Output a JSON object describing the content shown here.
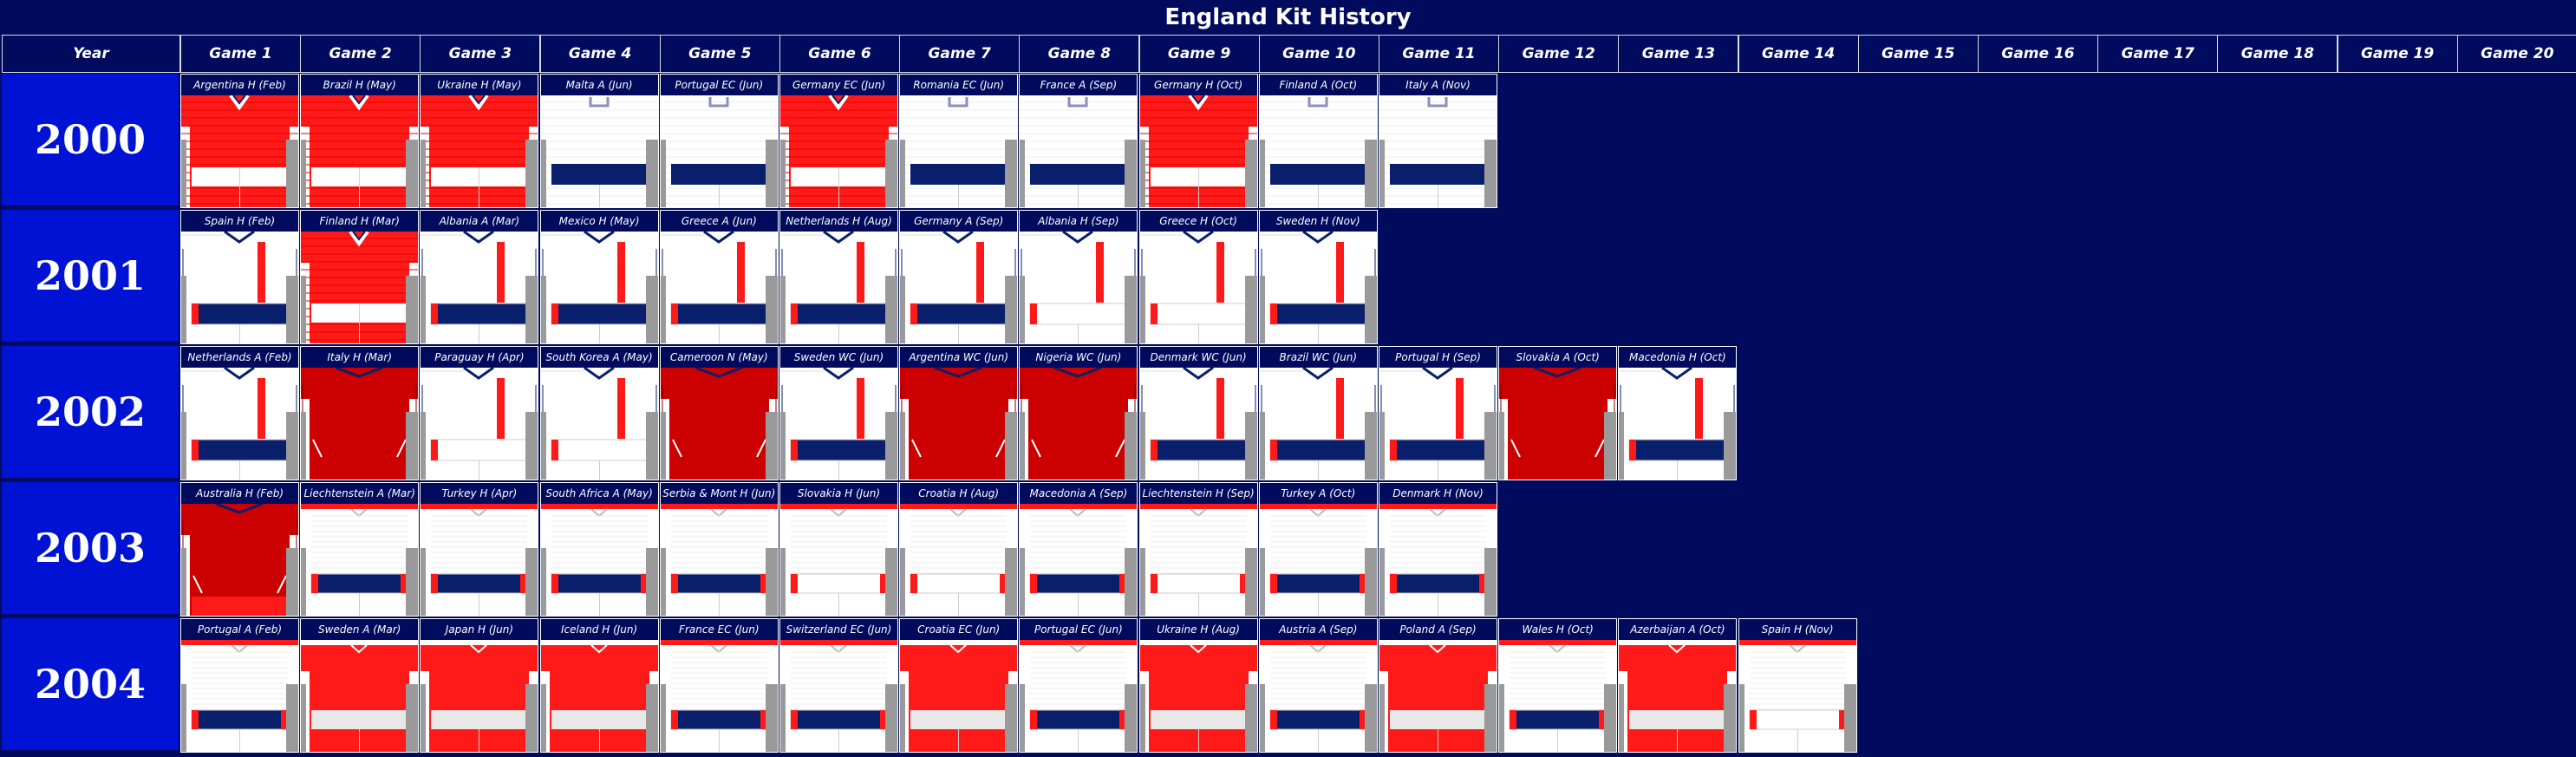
{
  "title": "England Kit History",
  "header": {
    "year_label": "Year",
    "games": [
      "Game 1",
      "Game 2",
      "Game 3",
      "Game 4",
      "Game 5",
      "Game 6",
      "Game 7",
      "Game 8",
      "Game 9",
      "Game 10",
      "Game 11",
      "Game 12",
      "Game 13",
      "Game 14",
      "Game 15",
      "Game 16",
      "Game 17",
      "Game 18",
      "Game 19",
      "Game 20"
    ]
  },
  "colors": {
    "background": "#000b5e",
    "year_cell": "#0012d4",
    "red": "#ff1a1a",
    "dark_red": "#cc0000",
    "navy": "#0a1f6b",
    "grey": "#9a9a9a",
    "white": "#ffffff"
  },
  "years": [
    {
      "year": "2000",
      "games": [
        {
          "label": "Argentina H (Feb)",
          "kit": "red_v"
        },
        {
          "label": "Brazil H (May)",
          "kit": "red_v"
        },
        {
          "label": "Ukraine H (May)",
          "kit": "red_v"
        },
        {
          "label": "Malta A (Jun)",
          "kit": "white_collar"
        },
        {
          "label": "Portugal EC (Jun)",
          "kit": "white_collar"
        },
        {
          "label": "Germany EC (Jun)",
          "kit": "red_v"
        },
        {
          "label": "Romania EC (Jun)",
          "kit": "white_collar"
        },
        {
          "label": "France A (Sep)",
          "kit": "white_collar"
        },
        {
          "label": "Germany H (Oct)",
          "kit": "red_v"
        },
        {
          "label": "Finland A (Oct)",
          "kit": "white_collar"
        },
        {
          "label": "Italy A (Nov)",
          "kit": "white_collar"
        }
      ]
    },
    {
      "year": "2001",
      "games": [
        {
          "label": "Spain H (Feb)",
          "kit": "white_stripe"
        },
        {
          "label": "Finland H (Mar)",
          "kit": "red_v"
        },
        {
          "label": "Albania A (Mar)",
          "kit": "white_stripe"
        },
        {
          "label": "Mexico H (May)",
          "kit": "white_stripe"
        },
        {
          "label": "Greece A (Jun)",
          "kit": "white_stripe"
        },
        {
          "label": "Netherlands H (Aug)",
          "kit": "white_stripe"
        },
        {
          "label": "Germany A (Sep)",
          "kit": "white_stripe"
        },
        {
          "label": "Albania H (Sep)",
          "kit": "white_stripe_ws"
        },
        {
          "label": "Greece H (Oct)",
          "kit": "white_stripe_ws"
        },
        {
          "label": "Sweden H (Nov)",
          "kit": "white_stripe"
        }
      ]
    },
    {
      "year": "2002",
      "games": [
        {
          "label": "Netherlands A (Feb)",
          "kit": "white_stripe"
        },
        {
          "label": "Italy H (Mar)",
          "kit": "dark_red"
        },
        {
          "label": "Paraguay H (Apr)",
          "kit": "white_stripe_ws"
        },
        {
          "label": "South Korea A (May)",
          "kit": "white_stripe_ws"
        },
        {
          "label": "Cameroon N (May)",
          "kit": "dark_red"
        },
        {
          "label": "Sweden WC (Jun)",
          "kit": "white_stripe"
        },
        {
          "label": "Argentina WC (Jun)",
          "kit": "dark_red"
        },
        {
          "label": "Nigeria WC (Jun)",
          "kit": "dark_red"
        },
        {
          "label": "Denmark WC (Jun)",
          "kit": "white_stripe"
        },
        {
          "label": "Brazil WC (Jun)",
          "kit": "white_stripe"
        },
        {
          "label": "Portugal H (Sep)",
          "kit": "white_stripe"
        },
        {
          "label": "Slovakia A (Oct)",
          "kit": "dark_red"
        },
        {
          "label": "Macedonia H (Oct)",
          "kit": "white_stripe"
        }
      ]
    },
    {
      "year": "2003",
      "games": [
        {
          "label": "Australia H (Feb)",
          "kit": "dark_red2"
        },
        {
          "label": "Liechtenstein A (Mar)",
          "kit": "white_plain"
        },
        {
          "label": "Turkey H (Apr)",
          "kit": "white_plain"
        },
        {
          "label": "South Africa A (May)",
          "kit": "white_plain"
        },
        {
          "label": "Serbia & Mont H (Jun)",
          "kit": "white_plain"
        },
        {
          "label": "Slovakia H (Jun)",
          "kit": "white_plain_ws"
        },
        {
          "label": "Croatia H (Aug)",
          "kit": "white_plain_ws"
        },
        {
          "label": "Macedonia A (Sep)",
          "kit": "white_plain"
        },
        {
          "label": "Liechtenstein H (Sep)",
          "kit": "white_plain_ws"
        },
        {
          "label": "Turkey A (Oct)",
          "kit": "white_plain"
        },
        {
          "label": "Denmark H (Nov)",
          "kit": "white_plain"
        }
      ]
    },
    {
      "year": "2004",
      "games": [
        {
          "label": "Portugal A (Feb)",
          "kit": "white_plain"
        },
        {
          "label": "Sweden A (Mar)",
          "kit": "red_plain"
        },
        {
          "label": "Japan H (Jun)",
          "kit": "red_plain"
        },
        {
          "label": "Iceland H (Jun)",
          "kit": "red_plain"
        },
        {
          "label": "France EC (Jun)",
          "kit": "white_plain"
        },
        {
          "label": "Switzerland EC (Jun)",
          "kit": "white_plain"
        },
        {
          "label": "Croatia EC (Jun)",
          "kit": "red_plain"
        },
        {
          "label": "Portugal EC (Jun)",
          "kit": "white_plain"
        },
        {
          "label": "Ukraine H (Aug)",
          "kit": "red_plain"
        },
        {
          "label": "Austria A (Sep)",
          "kit": "white_plain"
        },
        {
          "label": "Poland A (Sep)",
          "kit": "red_plain"
        },
        {
          "label": "Wales H (Oct)",
          "kit": "white_plain"
        },
        {
          "label": "Azerbaijan A (Oct)",
          "kit": "red_plain"
        },
        {
          "label": "Spain H (Nov)",
          "kit": "white_plain_ws"
        }
      ]
    }
  ]
}
